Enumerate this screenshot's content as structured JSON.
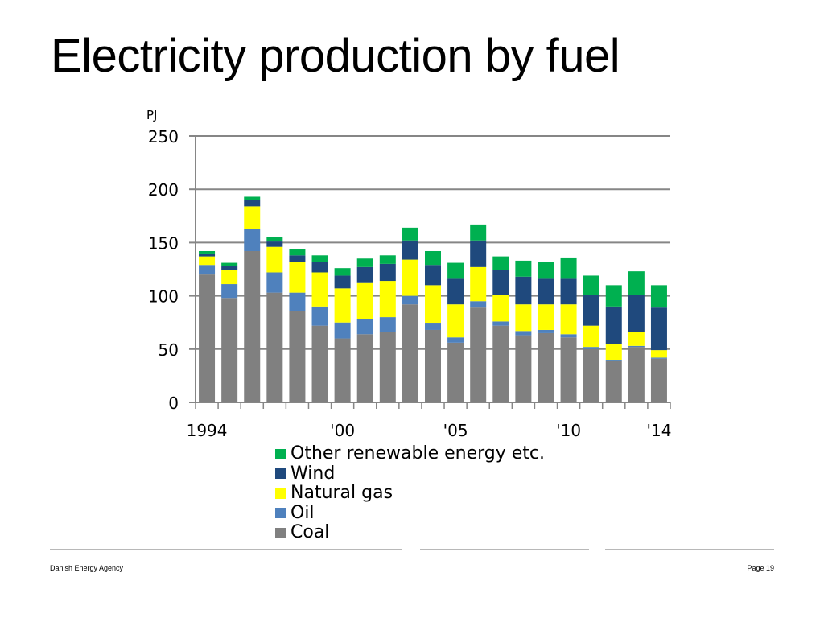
{
  "slide": {
    "title": "Electricity production by fuel",
    "footer_left": "Danish Energy Agency",
    "footer_right": "Page 19"
  },
  "chart_data": {
    "type": "bar",
    "stacked": true,
    "ylabel": "PJ",
    "ylim": [
      0,
      250
    ],
    "yticks": [
      0,
      50,
      100,
      150,
      200,
      250
    ],
    "x": [
      1994,
      1995,
      1996,
      1997,
      1998,
      1999,
      2000,
      2001,
      2002,
      2003,
      2004,
      2005,
      2006,
      2007,
      2008,
      2009,
      2010,
      2011,
      2012,
      2013,
      2014
    ],
    "xtick_labels": [
      {
        "year": 1994,
        "label": "1994"
      },
      {
        "year": 2000,
        "label": "'00"
      },
      {
        "year": 2005,
        "label": "'05"
      },
      {
        "year": 2010,
        "label": "'10"
      },
      {
        "year": 2014,
        "label": "'14"
      }
    ],
    "grid": true,
    "legend_position": "bottom",
    "series": [
      {
        "name": "Coal",
        "color": "#808080",
        "values": [
          120,
          98,
          142,
          103,
          86,
          72,
          60,
          64,
          66,
          92,
          68,
          56,
          89,
          72,
          63,
          65,
          61,
          50,
          39,
          52,
          41
        ]
      },
      {
        "name": "Oil",
        "color": "#4f81bd",
        "values": [
          9,
          13,
          21,
          19,
          17,
          18,
          15,
          14,
          14,
          8,
          6,
          5,
          6,
          4,
          4,
          3,
          3,
          2,
          1,
          1,
          1
        ]
      },
      {
        "name": "Natural gas",
        "color": "#ffff00",
        "values": [
          8,
          13,
          21,
          24,
          29,
          32,
          32,
          34,
          34,
          34,
          36,
          31,
          32,
          25,
          25,
          24,
          28,
          20,
          15,
          13,
          7
        ]
      },
      {
        "name": "Wind",
        "color": "#1f497d",
        "values": [
          2,
          4,
          6,
          5,
          6,
          10,
          12,
          15,
          16,
          18,
          19,
          24,
          25,
          23,
          26,
          24,
          24,
          29,
          35,
          35,
          40
        ]
      },
      {
        "name": "Other renewable energy etc.",
        "color": "#00b050",
        "values": [
          3,
          3,
          3,
          4,
          6,
          6,
          7,
          8,
          8,
          12,
          13,
          15,
          15,
          13,
          15,
          16,
          20,
          18,
          20,
          22,
          21
        ]
      }
    ],
    "legend_order": [
      "Other renewable energy etc.",
      "Wind",
      "Natural gas",
      "Oil",
      "Coal"
    ]
  }
}
